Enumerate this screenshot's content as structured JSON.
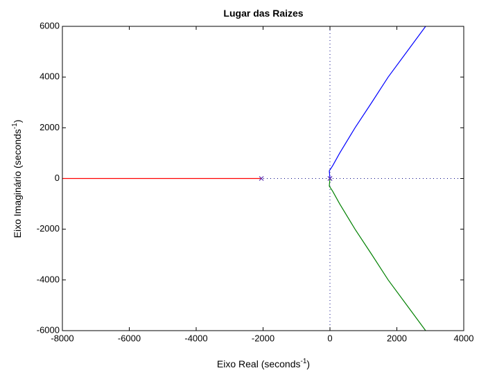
{
  "chart_data": {
    "type": "line",
    "title": "Lugar das Raizes",
    "xlabel": [
      "Eixo Real (seconds",
      "-1",
      ")"
    ],
    "ylabel": [
      "Eixo Imaginário (seconds",
      "-1",
      ")"
    ],
    "xlim": [
      -8000,
      4000
    ],
    "xticks": [
      -8000,
      -6000,
      -4000,
      -2000,
      0,
      2000,
      4000
    ],
    "ylim": [
      -6000,
      6000
    ],
    "yticks": [
      -6000,
      -4000,
      -2000,
      0,
      2000,
      4000,
      6000
    ],
    "series": [
      {
        "color": "#ff0000",
        "x": [
          -8000,
          -2050
        ],
        "values": [
          0,
          0
        ]
      },
      {
        "color": "#0000ff",
        "x": [
          0,
          -20,
          80,
          290,
          750,
          1250,
          1740,
          2300,
          2860
        ],
        "values": [
          0,
          300,
          500,
          1000,
          2000,
          3000,
          4000,
          5000,
          6000
        ]
      },
      {
        "color": "#008000",
        "x": [
          0,
          -20,
          80,
          290,
          750,
          1250,
          1740,
          2300,
          2860
        ],
        "values": [
          0,
          -300,
          -500,
          -1000,
          -2000,
          -3000,
          -4000,
          -5000,
          -6000
        ]
      }
    ],
    "poles": {
      "color": "#5a2fb0",
      "x": [
        -2050,
        0,
        0
      ],
      "values": [
        0,
        0,
        0
      ]
    }
  }
}
